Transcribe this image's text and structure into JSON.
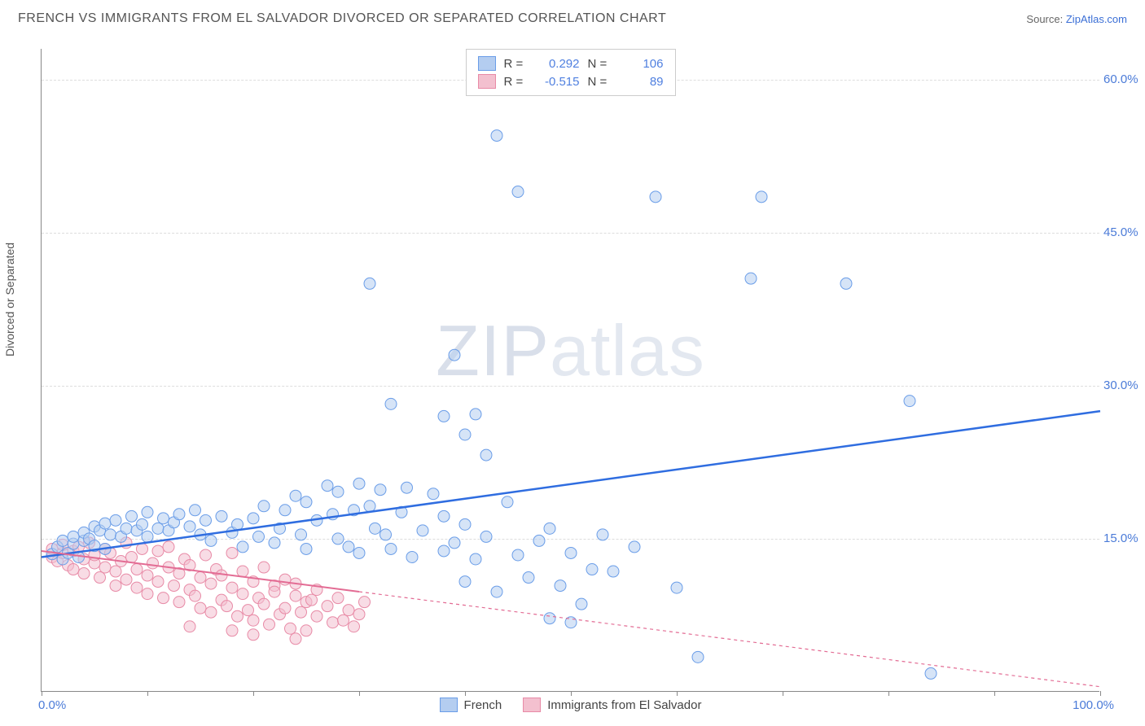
{
  "title": "FRENCH VS IMMIGRANTS FROM EL SALVADOR DIVORCED OR SEPARATED CORRELATION CHART",
  "source_label": "Source:",
  "source_link": "ZipAtlas.com",
  "yaxis_label": "Divorced or Separated",
  "watermark": "ZIPatlas",
  "chart": {
    "type": "scatter",
    "xlim": [
      0,
      100
    ],
    "ylim": [
      0,
      63
    ],
    "xticks": [
      0,
      10,
      20,
      30,
      40,
      50,
      60,
      70,
      80,
      90,
      100
    ],
    "yticks": [
      15,
      30,
      45,
      60
    ],
    "ytick_labels": [
      "15.0%",
      "30.0%",
      "45.0%",
      "60.0%"
    ],
    "x_left_label": "0.0%",
    "x_right_label": "100.0%",
    "background_color": "#ffffff",
    "grid_color": "#dddddd",
    "axis_color": "#888888",
    "tick_label_color": "#4b7bd8",
    "marker_radius": 7,
    "marker_opacity": 0.55,
    "series": [
      {
        "name": "French",
        "color_fill": "#b4cdf0",
        "color_stroke": "#6a9de8",
        "trend_color": "#2f6de0",
        "trend_width": 2.5,
        "R": "0.292",
        "N": "106",
        "trend_y0": 13.2,
        "trend_y100": 27.5,
        "points": [
          [
            1,
            13.5
          ],
          [
            1.5,
            14.2
          ],
          [
            2,
            13.0
          ],
          [
            2,
            14.8
          ],
          [
            2.5,
            13.6
          ],
          [
            3,
            14.5
          ],
          [
            3,
            15.2
          ],
          [
            3.5,
            13.2
          ],
          [
            4,
            14.8
          ],
          [
            4,
            15.6
          ],
          [
            4.5,
            15.0
          ],
          [
            5,
            16.2
          ],
          [
            5,
            14.3
          ],
          [
            5.5,
            15.8
          ],
          [
            6,
            16.5
          ],
          [
            6,
            14.0
          ],
          [
            6.5,
            15.4
          ],
          [
            7,
            16.8
          ],
          [
            7.5,
            15.2
          ],
          [
            8,
            16.0
          ],
          [
            8.5,
            17.2
          ],
          [
            9,
            15.8
          ],
          [
            9.5,
            16.4
          ],
          [
            10,
            17.6
          ],
          [
            10,
            15.2
          ],
          [
            11,
            16.0
          ],
          [
            11.5,
            17.0
          ],
          [
            12,
            15.8
          ],
          [
            12.5,
            16.6
          ],
          [
            13,
            17.4
          ],
          [
            14,
            16.2
          ],
          [
            14.5,
            17.8
          ],
          [
            15,
            15.4
          ],
          [
            15.5,
            16.8
          ],
          [
            16,
            14.8
          ],
          [
            17,
            17.2
          ],
          [
            18,
            15.6
          ],
          [
            18.5,
            16.4
          ],
          [
            19,
            14.2
          ],
          [
            20,
            17.0
          ],
          [
            20.5,
            15.2
          ],
          [
            21,
            18.2
          ],
          [
            22,
            14.6
          ],
          [
            22.5,
            16.0
          ],
          [
            23,
            17.8
          ],
          [
            24,
            19.2
          ],
          [
            24.5,
            15.4
          ],
          [
            25,
            18.6
          ],
          [
            25,
            14.0
          ],
          [
            26,
            16.8
          ],
          [
            27,
            20.2
          ],
          [
            27.5,
            17.4
          ],
          [
            28,
            15.0
          ],
          [
            28,
            19.6
          ],
          [
            29,
            14.2
          ],
          [
            29.5,
            17.8
          ],
          [
            30,
            20.4
          ],
          [
            30,
            13.6
          ],
          [
            31,
            18.2
          ],
          [
            31,
            40.0
          ],
          [
            31.5,
            16.0
          ],
          [
            32,
            19.8
          ],
          [
            32.5,
            15.4
          ],
          [
            33,
            28.2
          ],
          [
            33,
            14.0
          ],
          [
            34,
            17.6
          ],
          [
            34.5,
            20.0
          ],
          [
            35,
            13.2
          ],
          [
            36,
            15.8
          ],
          [
            37,
            19.4
          ],
          [
            38,
            13.8
          ],
          [
            38,
            27.0
          ],
          [
            38,
            17.2
          ],
          [
            39,
            33.0
          ],
          [
            39,
            14.6
          ],
          [
            40,
            16.4
          ],
          [
            40,
            10.8
          ],
          [
            40,
            25.2
          ],
          [
            41,
            27.2
          ],
          [
            41,
            13.0
          ],
          [
            42,
            15.2
          ],
          [
            42,
            23.2
          ],
          [
            43,
            54.5
          ],
          [
            43,
            9.8
          ],
          [
            44,
            18.6
          ],
          [
            45,
            13.4
          ],
          [
            45,
            49.0
          ],
          [
            46,
            11.2
          ],
          [
            47,
            14.8
          ],
          [
            48,
            7.2
          ],
          [
            48,
            16.0
          ],
          [
            49,
            10.4
          ],
          [
            50,
            13.6
          ],
          [
            50,
            6.8
          ],
          [
            51,
            8.6
          ],
          [
            52,
            12.0
          ],
          [
            53,
            15.4
          ],
          [
            54,
            11.8
          ],
          [
            56,
            14.2
          ],
          [
            58,
            48.5
          ],
          [
            60,
            10.2
          ],
          [
            62,
            3.4
          ],
          [
            67,
            40.5
          ],
          [
            68,
            48.5
          ],
          [
            76,
            40.0
          ],
          [
            82,
            28.5
          ],
          [
            84,
            1.8
          ]
        ]
      },
      {
        "name": "Immigrants from El Salvador",
        "color_fill": "#f3c0cf",
        "color_stroke": "#e88aa6",
        "trend_color": "#e36c94",
        "trend_width": 2,
        "trend_dash": "4 4",
        "trend_solid_until": 30,
        "R": "-0.515",
        "N": "89",
        "trend_y0": 13.8,
        "trend_y100": 0.5,
        "points": [
          [
            1,
            13.2
          ],
          [
            1,
            14.0
          ],
          [
            1.5,
            12.8
          ],
          [
            2,
            13.6
          ],
          [
            2,
            14.4
          ],
          [
            2.5,
            12.4
          ],
          [
            3,
            13.8
          ],
          [
            3,
            12.0
          ],
          [
            3.5,
            14.2
          ],
          [
            4,
            13.0
          ],
          [
            4,
            11.6
          ],
          [
            4.5,
            14.6
          ],
          [
            5,
            12.6
          ],
          [
            5,
            13.4
          ],
          [
            5.5,
            11.2
          ],
          [
            6,
            14.0
          ],
          [
            6,
            12.2
          ],
          [
            6.5,
            13.6
          ],
          [
            7,
            11.8
          ],
          [
            7,
            10.4
          ],
          [
            7.5,
            12.8
          ],
          [
            8,
            14.6
          ],
          [
            8,
            11.0
          ],
          [
            8.5,
            13.2
          ],
          [
            9,
            10.2
          ],
          [
            9,
            12.0
          ],
          [
            9.5,
            14.0
          ],
          [
            10,
            11.4
          ],
          [
            10,
            9.6
          ],
          [
            10.5,
            12.6
          ],
          [
            11,
            13.8
          ],
          [
            11,
            10.8
          ],
          [
            11.5,
            9.2
          ],
          [
            12,
            12.2
          ],
          [
            12,
            14.2
          ],
          [
            12.5,
            10.4
          ],
          [
            13,
            11.6
          ],
          [
            13,
            8.8
          ],
          [
            13.5,
            13.0
          ],
          [
            14,
            10.0
          ],
          [
            14,
            12.4
          ],
          [
            14.5,
            9.4
          ],
          [
            15,
            11.2
          ],
          [
            15,
            8.2
          ],
          [
            15.5,
            13.4
          ],
          [
            16,
            10.6
          ],
          [
            16,
            7.8
          ],
          [
            16.5,
            12.0
          ],
          [
            17,
            9.0
          ],
          [
            17,
            11.4
          ],
          [
            17.5,
            8.4
          ],
          [
            18,
            10.2
          ],
          [
            18,
            13.6
          ],
          [
            18.5,
            7.4
          ],
          [
            19,
            9.6
          ],
          [
            19,
            11.8
          ],
          [
            19.5,
            8.0
          ],
          [
            20,
            10.8
          ],
          [
            20,
            7.0
          ],
          [
            20.5,
            9.2
          ],
          [
            21,
            12.2
          ],
          [
            21,
            8.6
          ],
          [
            21.5,
            6.6
          ],
          [
            22,
            10.4
          ],
          [
            22,
            9.8
          ],
          [
            22.5,
            7.6
          ],
          [
            23,
            11.0
          ],
          [
            23,
            8.2
          ],
          [
            23.5,
            6.2
          ],
          [
            24,
            9.4
          ],
          [
            24,
            10.6
          ],
          [
            24.5,
            7.8
          ],
          [
            25,
            8.8
          ],
          [
            25,
            6.0
          ],
          [
            25.5,
            9.0
          ],
          [
            26,
            7.4
          ],
          [
            26,
            10.0
          ],
          [
            24,
            5.2
          ],
          [
            27,
            8.4
          ],
          [
            27.5,
            6.8
          ],
          [
            28,
            9.2
          ],
          [
            28.5,
            7.0
          ],
          [
            29,
            8.0
          ],
          [
            29.5,
            6.4
          ],
          [
            30,
            7.6
          ],
          [
            30.5,
            8.8
          ],
          [
            14,
            6.4
          ],
          [
            18,
            6.0
          ],
          [
            20,
            5.6
          ]
        ]
      }
    ]
  },
  "bottom_legend": [
    {
      "label": "French",
      "fill": "#b4cdf0",
      "stroke": "#6a9de8"
    },
    {
      "label": "Immigrants from El Salvador",
      "fill": "#f3c0cf",
      "stroke": "#e88aa6"
    }
  ]
}
